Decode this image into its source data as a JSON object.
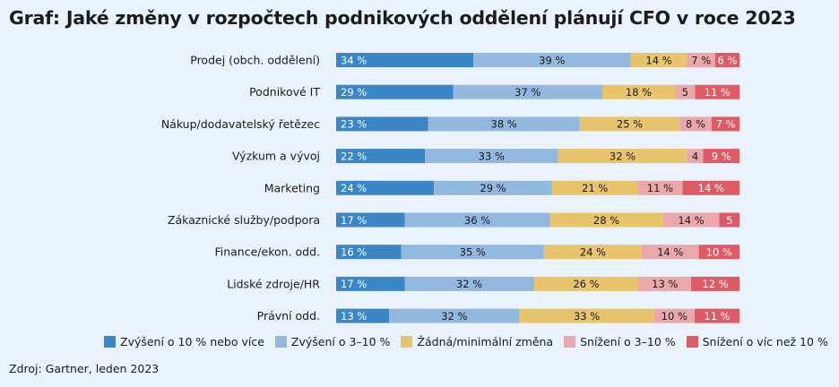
{
  "title": "Graf: Jaké změny v rozpočtech podnikových oddělení plánují CFO v roce 2023",
  "source": "Zdroj: Gartner, leden 2023",
  "colors": {
    "increase_10_plus": "#3a86c6",
    "increase_3_10": "#93b8e0",
    "no_change": "#e8c46c",
    "decrease_3_10": "#eba8ac",
    "decrease_10_plus": "#de5b66"
  },
  "chart_data": {
    "type": "bar",
    "orientation": "horizontal",
    "stacked": true,
    "categories": [
      "Prodej (obch. oddělení)",
      "Podnikové IT",
      "Nákup/dodavatelský řetězec",
      "Výzkum a vývoj",
      "Marketing",
      "Zákaznické služby/podpora",
      "Finance/ekon. odd.",
      "Lidské zdroje/HR",
      "Právní odd."
    ],
    "series": [
      {
        "name": "Zvýšení o 10 % nebo více",
        "values": [
          34,
          29,
          23,
          22,
          24,
          17,
          16,
          17,
          13
        ],
        "labels": [
          "34 %",
          "29 %",
          "23 %",
          "22 %",
          "24 %",
          "17 %",
          "16 %",
          "17 %",
          "13 %"
        ]
      },
      {
        "name": "Zvýšení o 3–10 %",
        "values": [
          39,
          37,
          38,
          33,
          29,
          36,
          35,
          32,
          32
        ],
        "labels": [
          "39 %",
          "37 %",
          "38 %",
          "33 %",
          "29 %",
          "36 %",
          "35 %",
          "32 %",
          "32 %"
        ]
      },
      {
        "name": "Žádná/minimální změna",
        "values": [
          14,
          18,
          25,
          32,
          21,
          28,
          24,
          26,
          33
        ],
        "labels": [
          "14 %",
          "18 %",
          "25 %",
          "32 %",
          "21 %",
          "28 %",
          "24 %",
          "26 %",
          "33 %"
        ]
      },
      {
        "name": "Snížení o 3–10 %",
        "values": [
          7,
          5,
          8,
          4,
          11,
          14,
          14,
          13,
          10
        ],
        "labels": [
          "7 %",
          "5",
          "8 %",
          "4",
          "11 %",
          "14 %",
          "14 %",
          "13 %",
          "10 %"
        ]
      },
      {
        "name": "Snížení o víc než 10 %",
        "values": [
          6,
          11,
          7,
          9,
          14,
          5,
          10,
          12,
          11
        ],
        "labels": [
          "6 %",
          "11 %",
          "7 %",
          "9 %",
          "14 %",
          "5",
          "10 %",
          "12 %",
          "11 %"
        ]
      }
    ],
    "legend_position": "bottom",
    "grid": false
  }
}
